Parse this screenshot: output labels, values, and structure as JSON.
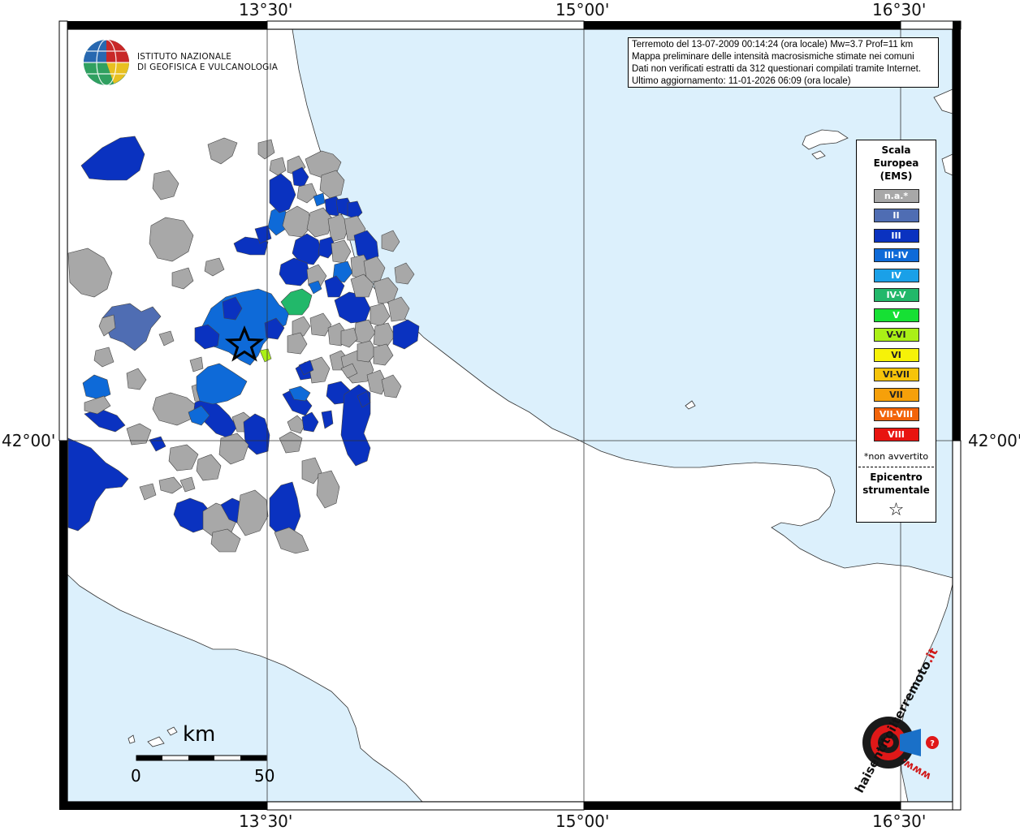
{
  "info": {
    "line1": "Terremoto del 13-07-2009 00:14:24 (ora locale) Mw=3.7 Prof=11 km",
    "line2": "Mappa preliminare delle intensità macrosismiche stimate nei comuni",
    "line3": "Dati non verificati estratti da 312 questionari compilati tramite Internet.",
    "line4": "Ultimo aggiornamento: 11-01-2026 06:09 (ora locale)"
  },
  "logo": {
    "name_line1": "ISTITUTO NAZIONALE",
    "name_line2": "DI GEOFISICA E VULCANOLOGIA"
  },
  "coords": {
    "top": [
      "13°30'",
      "15°00'",
      "16°30'"
    ],
    "bottom": [
      "13°30'",
      "15°00'",
      "16°30'"
    ],
    "left": "42°00'",
    "right": "42°00'"
  },
  "legend": {
    "title_line1": "Scala",
    "title_line2": "Europea",
    "title_line3": "(EMS)",
    "items": [
      {
        "label": "n.a.*",
        "color": "#a8a8a8"
      },
      {
        "label": "II",
        "color": "#4f6db3"
      },
      {
        "label": "III",
        "color": "#0a32c0"
      },
      {
        "label": "III-IV",
        "color": "#0e6ad8"
      },
      {
        "label": "IV",
        "color": "#1aa0e8"
      },
      {
        "label": "IV-V",
        "color": "#22b86a"
      },
      {
        "label": "V",
        "color": "#16e034"
      },
      {
        "label": "V-VI",
        "color": "#aaf016"
      },
      {
        "label": "VI",
        "color": "#f6f208"
      },
      {
        "label": "VI-VII",
        "color": "#f6c40a"
      },
      {
        "label": "VII",
        "color": "#f6a00a"
      },
      {
        "label": "VII-VIII",
        "color": "#f2640a"
      },
      {
        "label": "VIII",
        "color": "#e81410"
      }
    ],
    "note": "*non avvertito",
    "epicenter_line1": "Epicentro",
    "epicenter_line2": "strumentale",
    "epicenter_symbol": "☆"
  },
  "scale": {
    "unit": "km",
    "min": "0",
    "max": "50"
  },
  "watermark": {
    "text1": "haisentitoilterremoto",
    "text2": ".it",
    "text3": "www."
  },
  "colors": {
    "sea": "#dcf0fc",
    "land": "#ffffff",
    "gray": "#a8a8a8",
    "II": "#4f6db3",
    "III": "#0a32c0",
    "IIIIV": "#0e6ad8",
    "IV": "#1aa0e8",
    "IVV": "#22b86a",
    "VVI": "#aaf016"
  }
}
